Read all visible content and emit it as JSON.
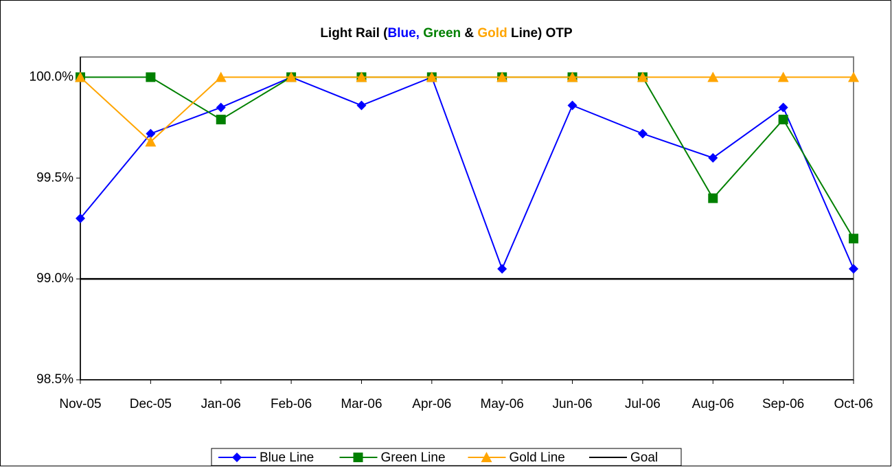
{
  "chart_data": {
    "type": "line",
    "title": [
      {
        "text": "Light Rail (",
        "color": "#000000"
      },
      {
        "text": "Blue,",
        "color": "#0000ff"
      },
      {
        "text": " Green",
        "color": "#008000"
      },
      {
        "text": " & ",
        "color": "#000000"
      },
      {
        "text": "Gold",
        "color": "#ffa500"
      },
      {
        "text": " Line) OTP",
        "color": "#000000"
      }
    ],
    "categories": [
      "Nov-05",
      "Dec-05",
      "Jan-06",
      "Feb-06",
      "Mar-06",
      "Apr-06",
      "May-06",
      "Jun-06",
      "Jul-06",
      "Aug-06",
      "Sep-06",
      "Oct-06"
    ],
    "series": [
      {
        "name": "Blue Line",
        "color": "#0000ff",
        "marker": "diamond",
        "values": [
          99.3,
          99.72,
          99.85,
          100,
          99.86,
          100,
          99.05,
          99.86,
          99.72,
          99.6,
          99.85,
          99.05
        ]
      },
      {
        "name": "Green Line",
        "color": "#008000",
        "marker": "square",
        "values": [
          100,
          100,
          99.79,
          100,
          100,
          100,
          100,
          100,
          100,
          99.4,
          99.79,
          99.2
        ]
      },
      {
        "name": "Gold Line",
        "color": "#ffa500",
        "marker": "triangle",
        "values": [
          100,
          99.68,
          100,
          100,
          100,
          100,
          100,
          100,
          100,
          100,
          100,
          100
        ]
      },
      {
        "name": "Goal",
        "color": "#000000",
        "marker": "none",
        "values": [
          99,
          99,
          99,
          99,
          99,
          99,
          99,
          99,
          99,
          99,
          99,
          99
        ]
      }
    ],
    "ylim": [
      98.5,
      100.1
    ],
    "yticks": [
      {
        "value": 98.5,
        "label": "98.5%"
      },
      {
        "value": 99,
        "label": "99.0%"
      },
      {
        "value": 99.5,
        "label": "99.5%"
      },
      {
        "value": 100,
        "label": "100.0%"
      }
    ],
    "legend": "bottom"
  }
}
